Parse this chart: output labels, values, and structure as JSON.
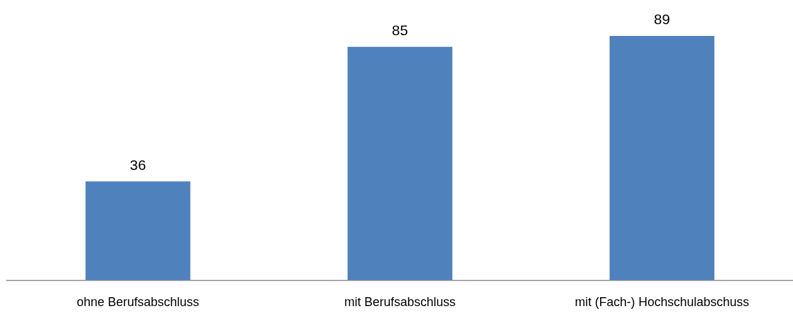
{
  "chart_data": {
    "type": "bar",
    "categories": [
      "ohne Berufsabschluss",
      "mit Berufsabschluss",
      "mit (Fach-) Hochschulabschuss"
    ],
    "values": [
      36,
      85,
      89
    ],
    "color": "#4f81bd",
    "data_labels": true
  }
}
